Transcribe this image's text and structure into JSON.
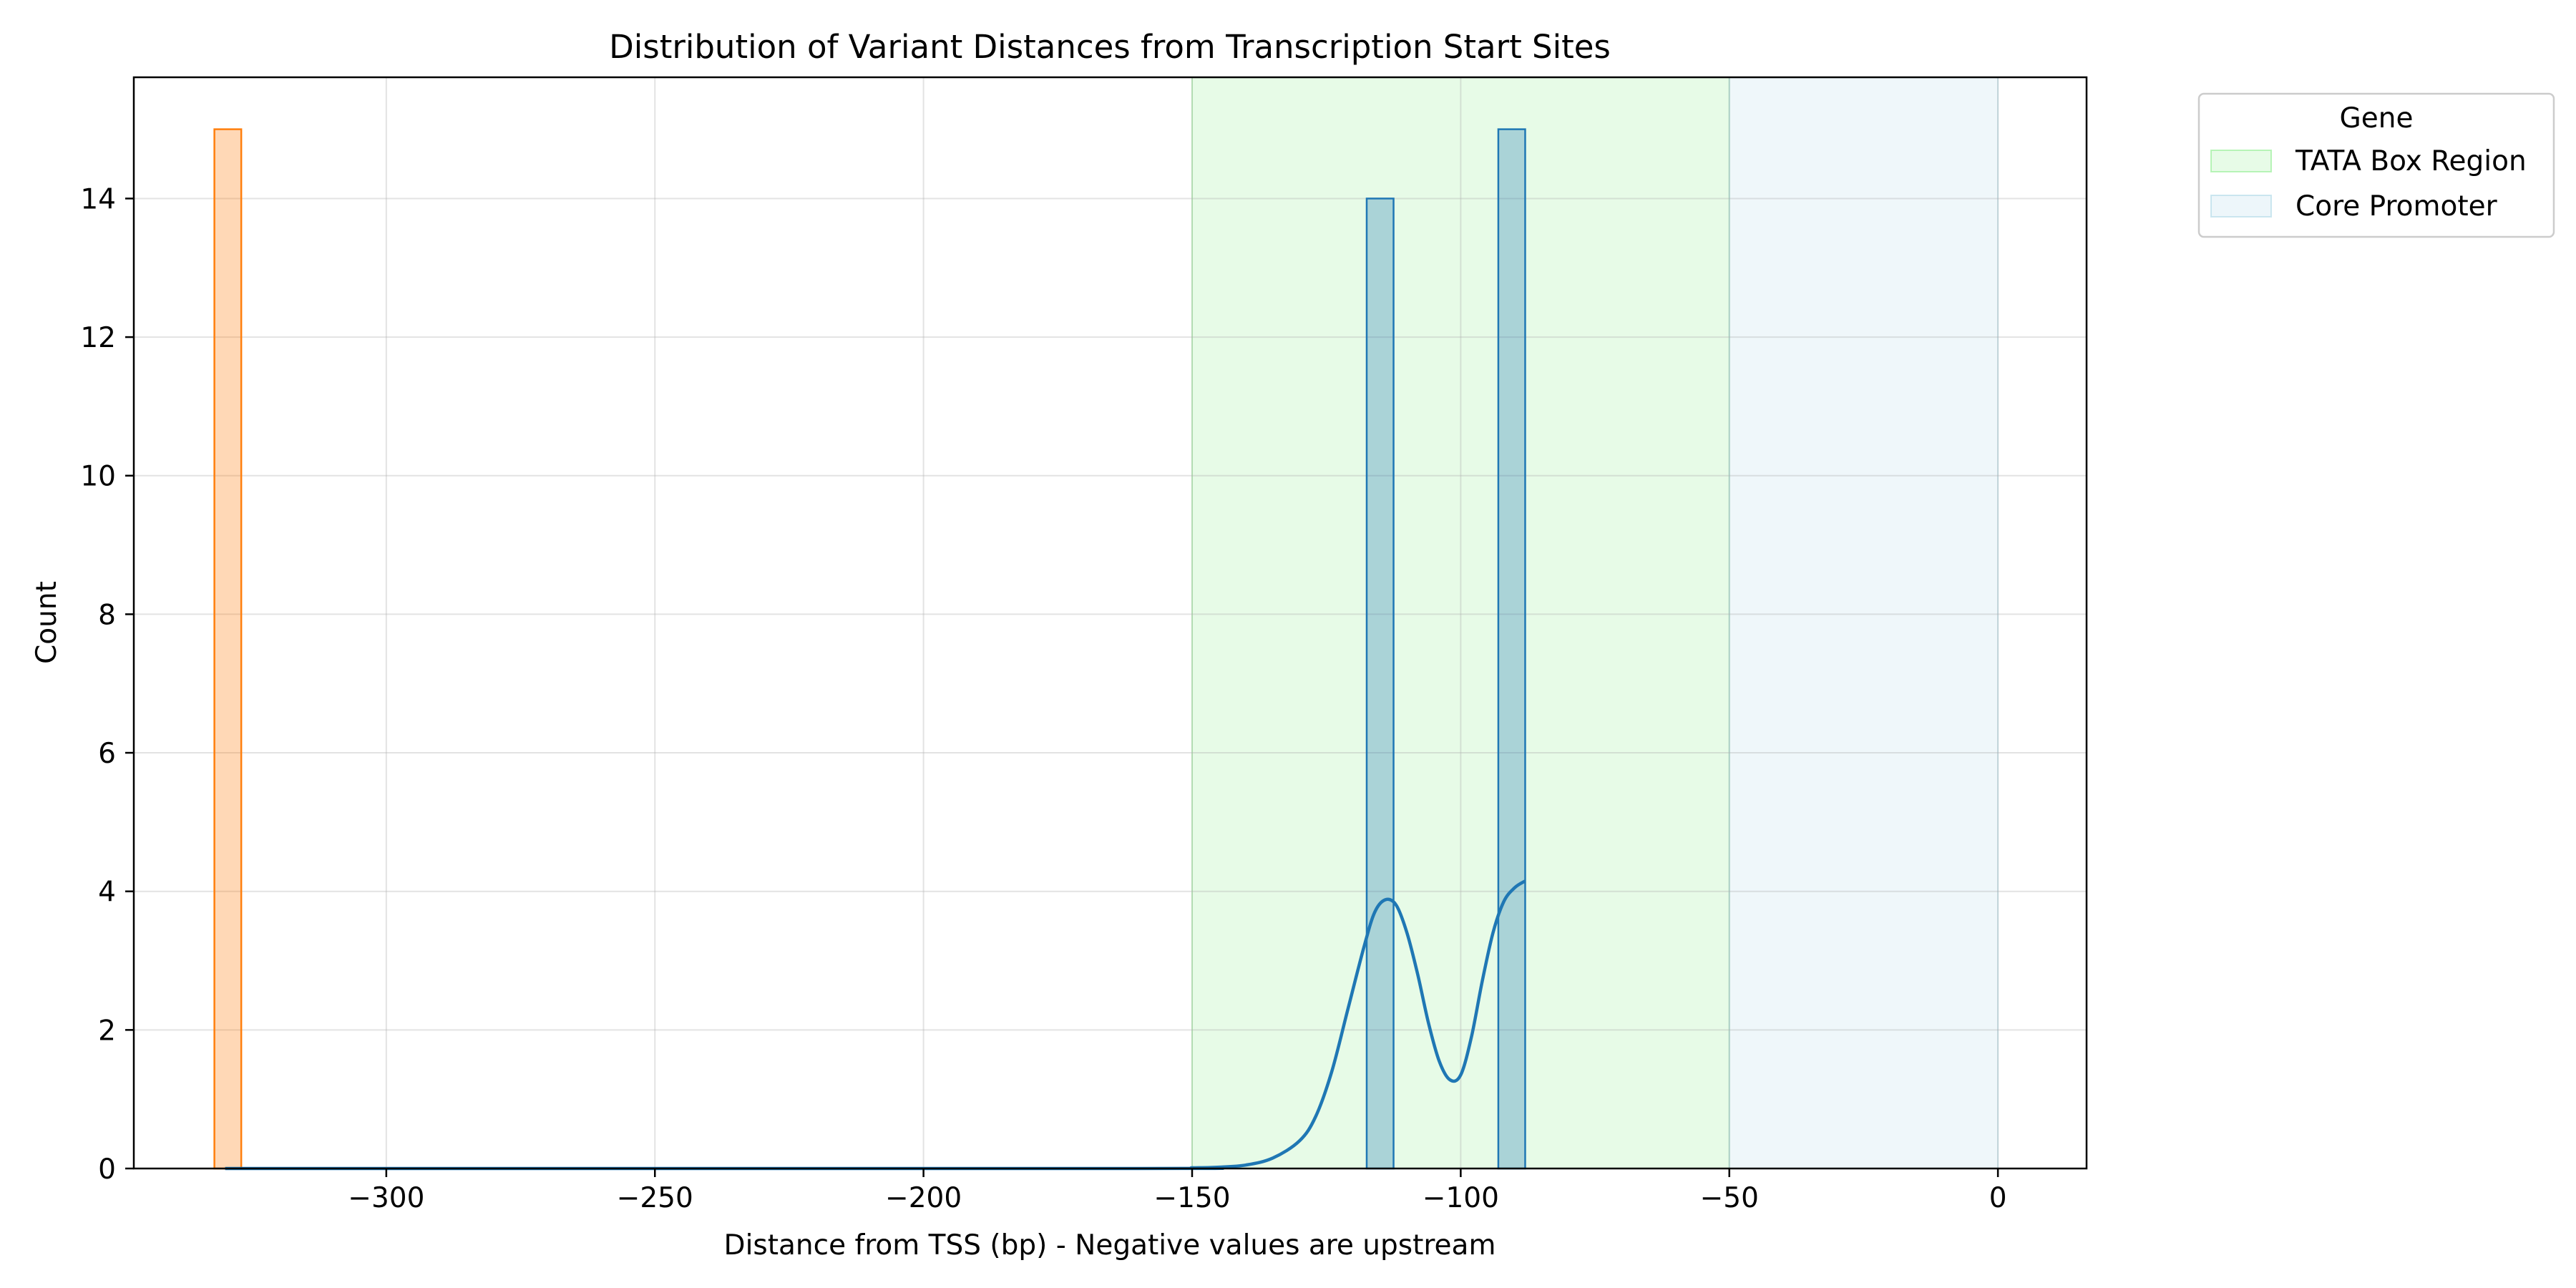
{
  "chart_data": {
    "type": "bar",
    "title": "Distribution of Variant Distances from Transcription Start Sites",
    "xlabel": "Distance from TSS (bp) - Negative values are upstream",
    "ylabel": "Count",
    "xlim": [
      -347,
      16.5
    ],
    "ylim": [
      0,
      15.75
    ],
    "grid": true,
    "x_ticks": [
      -300,
      -250,
      -200,
      -150,
      -100,
      -50,
      0
    ],
    "x_tick_labels": [
      "−300",
      "−250",
      "−200",
      "−150",
      "−100",
      "−50",
      "0"
    ],
    "y_ticks": [
      0,
      2,
      4,
      6,
      8,
      10,
      12,
      14
    ],
    "y_tick_labels": [
      "0",
      "2",
      "4",
      "6",
      "8",
      "10",
      "12",
      "14"
    ],
    "regions": [
      {
        "label": "TATA Box Region",
        "start": -150,
        "end": -50,
        "color": "#90ee90"
      },
      {
        "label": "Core Promoter",
        "start": -50,
        "end": 0,
        "color": "#add8e6"
      }
    ],
    "legend": {
      "title": "Gene",
      "placement": "outside-top-right",
      "entries": [
        {
          "label": "TATA Box Region",
          "color": "#90ee90"
        },
        {
          "label": "Core Promoter",
          "color": "#add8e6"
        }
      ]
    },
    "series": [
      {
        "color": "#ff7f0e",
        "bins": [
          {
            "start": -332,
            "end": -327,
            "count": 15
          }
        ]
      },
      {
        "color": "#1f77b4",
        "bins": [
          {
            "start": -117.5,
            "end": -112.5,
            "count": 14
          },
          {
            "start": -93,
            "end": -88,
            "count": 15
          }
        ],
        "kde": {
          "color": "#1f77b4",
          "x": [
            -330,
            -160,
            -150,
            -145,
            -140,
            -135,
            -130,
            -127,
            -124,
            -121,
            -118,
            -116,
            -114,
            -112,
            -110,
            -108,
            -106,
            -104,
            -102,
            -100,
            -98,
            -96,
            -94,
            -92,
            -90,
            -88
          ],
          "y": [
            0,
            0,
            0.01,
            0.02,
            0.05,
            0.15,
            0.4,
            0.75,
            1.4,
            2.3,
            3.2,
            3.7,
            3.88,
            3.8,
            3.4,
            2.8,
            2.1,
            1.55,
            1.28,
            1.35,
            1.9,
            2.7,
            3.4,
            3.85,
            4.05,
            4.15
          ]
        }
      }
    ]
  }
}
